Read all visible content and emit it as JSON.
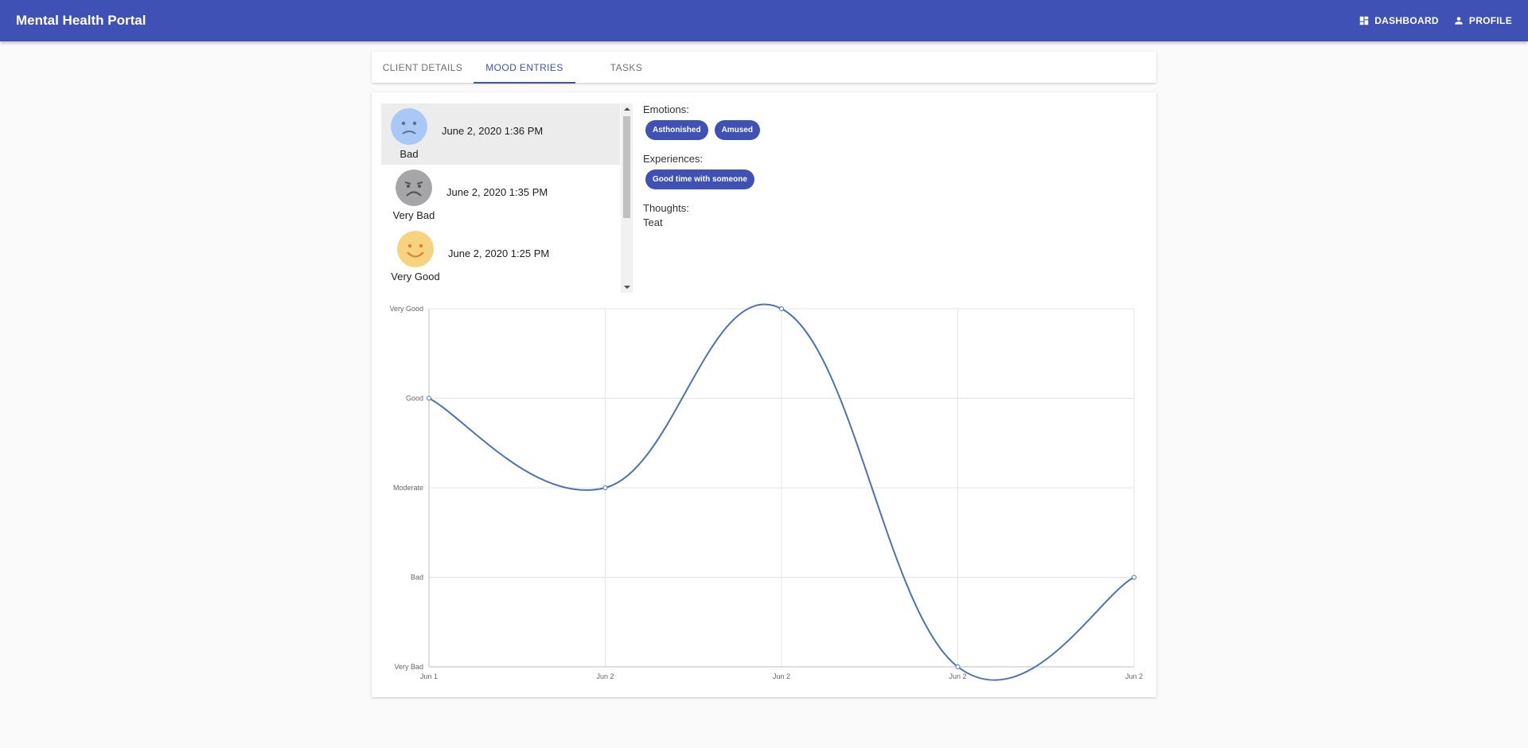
{
  "app": {
    "title": "Mental Health Portal",
    "nav": [
      {
        "label": "DASHBOARD",
        "icon": "dashboard-icon"
      },
      {
        "label": "PROFILE",
        "icon": "person-icon"
      }
    ]
  },
  "tabs": [
    {
      "label": "CLIENT DETAILS",
      "active": false
    },
    {
      "label": "MOOD ENTRIES",
      "active": true
    },
    {
      "label": "TASKS",
      "active": false
    }
  ],
  "entries": [
    {
      "mood": "Bad",
      "date": "June 2, 2020 1:36 PM",
      "icon": "sad-face-icon",
      "color": "#a9c8f5",
      "selected": true
    },
    {
      "mood": "Very Bad",
      "date": "June 2, 2020 1:35 PM",
      "icon": "very-sad-face-icon",
      "color": "#a6a6a8",
      "selected": false
    },
    {
      "mood": "Very Good",
      "date": "June 2, 2020 1:25 PM",
      "icon": "happy-face-icon",
      "color": "#f8d37f",
      "selected": false
    }
  ],
  "details": {
    "emotions_label": "Emotions:",
    "emotions": [
      "Asthonished",
      "Amused"
    ],
    "experiences_label": "Experiences:",
    "experiences": [
      "Good time with someone"
    ],
    "thoughts_label": "Thoughts:",
    "thoughts": "Teat"
  },
  "chart_data": {
    "type": "line",
    "categories": [
      "Jun 1",
      "Jun 2",
      "Jun 2",
      "Jun 2",
      "Jun 2"
    ],
    "y_levels": [
      "Very Bad",
      "Bad",
      "Moderate",
      "Good",
      "Very Good"
    ],
    "series": [
      {
        "values": [
          3,
          2,
          4,
          0,
          1
        ],
        "color": "#4a73b5"
      }
    ],
    "grid": true,
    "smooth": true
  }
}
